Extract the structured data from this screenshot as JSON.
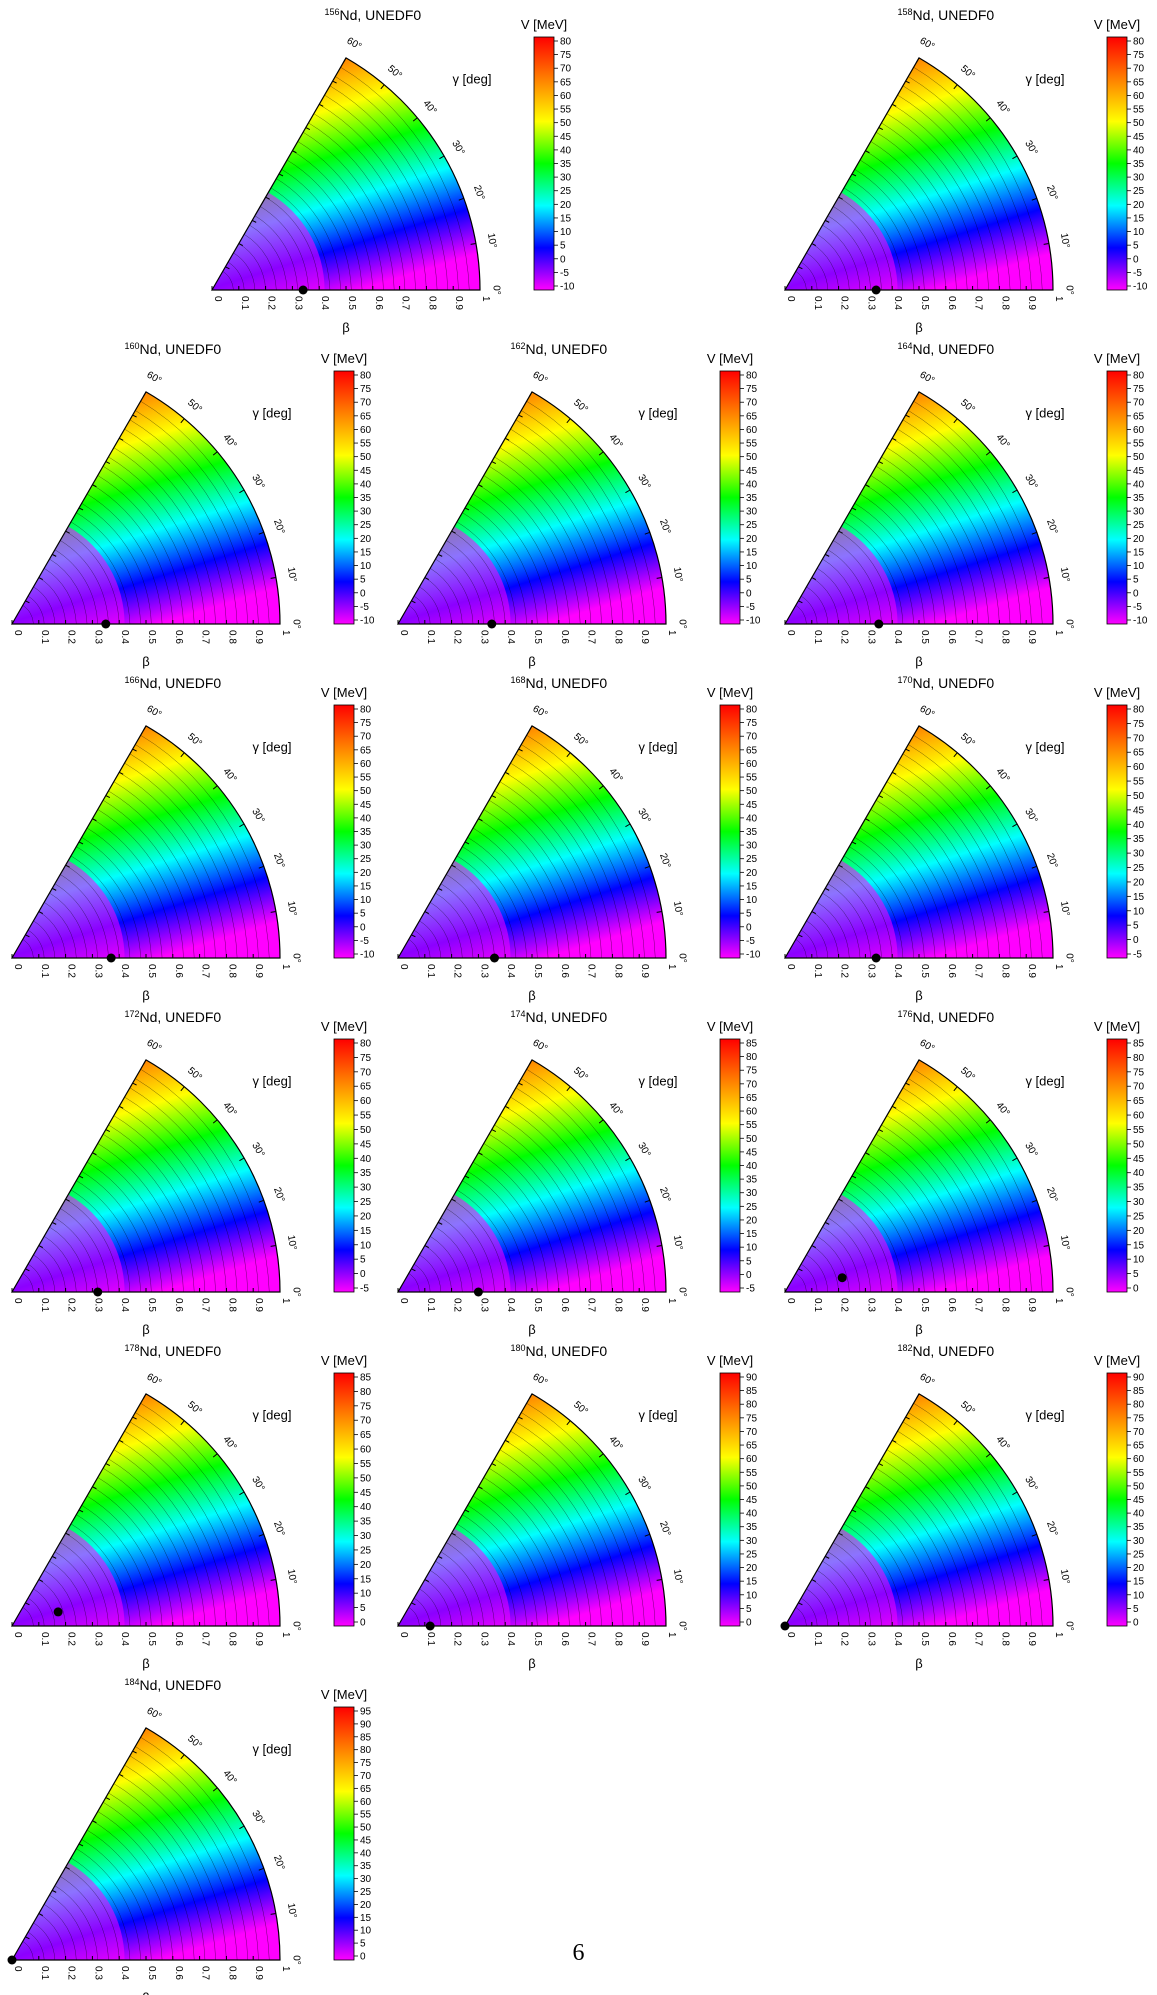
{
  "page_number": "6",
  "gamma_ticks": [
    "0°",
    "10°",
    "20°",
    "30°",
    "40°",
    "50°",
    "60°"
  ],
  "beta_ticks": [
    "0",
    "0.1",
    "0.2",
    "0.3",
    "0.4",
    "0.5",
    "0.6",
    "0.7",
    "0.8",
    "0.9",
    "1"
  ],
  "colors": {
    "min": "#ff00ff",
    "c1": "#0000ff",
    "c2": "#00ffff",
    "c3": "#00ff00",
    "c4": "#ffff00",
    "c5": "#ff8000",
    "max": "#ff0000"
  },
  "chart_data": [
    {
      "type": "heatmap",
      "nucleus": "156",
      "title": "Nd, UNEDF0",
      "xlabel": "β",
      "ylabel": "γ [deg]",
      "colorbar_label": "V [MeV]",
      "x_axis": "beta",
      "xlim": [
        0,
        1
      ],
      "ylim": [
        0,
        60
      ],
      "vmin": -10,
      "vmax": 80,
      "colorbar_ticks": [
        -10,
        -5,
        0,
        5,
        10,
        15,
        20,
        25,
        30,
        35,
        40,
        45,
        50,
        55,
        60,
        65,
        70,
        75,
        80
      ],
      "minimum": {
        "beta": 0.34,
        "gamma": 0
      }
    },
    {
      "type": "heatmap",
      "nucleus": "158",
      "title": "Nd, UNEDF0",
      "xlabel": "β",
      "ylabel": "γ [deg]",
      "colorbar_label": "V [MeV]",
      "x_axis": "beta",
      "xlim": [
        0,
        1
      ],
      "ylim": [
        0,
        60
      ],
      "vmin": -10,
      "vmax": 80,
      "colorbar_ticks": [
        -10,
        -5,
        0,
        5,
        10,
        15,
        20,
        25,
        30,
        35,
        40,
        45,
        50,
        55,
        60,
        65,
        70,
        75,
        80
      ],
      "minimum": {
        "beta": 0.34,
        "gamma": 0
      }
    },
    {
      "type": "heatmap",
      "nucleus": "160",
      "title": "Nd, UNEDF0",
      "xlabel": "β",
      "ylabel": "γ [deg]",
      "colorbar_label": "V [MeV]",
      "x_axis": "beta",
      "xlim": [
        0,
        1
      ],
      "ylim": [
        0,
        60
      ],
      "vmin": -10,
      "vmax": 80,
      "colorbar_ticks": [
        -10,
        -5,
        0,
        5,
        10,
        15,
        20,
        25,
        30,
        35,
        40,
        45,
        50,
        55,
        60,
        65,
        70,
        75,
        80
      ],
      "minimum": {
        "beta": 0.35,
        "gamma": 0
      }
    },
    {
      "type": "heatmap",
      "nucleus": "162",
      "title": "Nd, UNEDF0",
      "xlabel": "β",
      "ylabel": "γ [deg]",
      "colorbar_label": "V [MeV]",
      "x_axis": "beta",
      "xlim": [
        0,
        1
      ],
      "ylim": [
        0,
        60
      ],
      "vmin": -10,
      "vmax": 80,
      "colorbar_ticks": [
        -10,
        -5,
        0,
        5,
        10,
        15,
        20,
        25,
        30,
        35,
        40,
        45,
        50,
        55,
        60,
        65,
        70,
        75,
        80
      ],
      "minimum": {
        "beta": 0.35,
        "gamma": 0
      }
    },
    {
      "type": "heatmap",
      "nucleus": "164",
      "title": "Nd, UNEDF0",
      "xlabel": "β",
      "ylabel": "γ [deg]",
      "colorbar_label": "V [MeV]",
      "x_axis": "beta",
      "xlim": [
        0,
        1
      ],
      "ylim": [
        0,
        60
      ],
      "vmin": -10,
      "vmax": 80,
      "colorbar_ticks": [
        -10,
        -5,
        0,
        5,
        10,
        15,
        20,
        25,
        30,
        35,
        40,
        45,
        50,
        55,
        60,
        65,
        70,
        75,
        80
      ],
      "minimum": {
        "beta": 0.35,
        "gamma": 0
      }
    },
    {
      "type": "heatmap",
      "nucleus": "166",
      "title": "Nd, UNEDF0",
      "xlabel": "β",
      "ylabel": "γ [deg]",
      "colorbar_label": "V [MeV]",
      "x_axis": "beta",
      "xlim": [
        0,
        1
      ],
      "ylim": [
        0,
        60
      ],
      "vmin": -10,
      "vmax": 80,
      "colorbar_ticks": [
        -10,
        -5,
        0,
        5,
        10,
        15,
        20,
        25,
        30,
        35,
        40,
        45,
        50,
        55,
        60,
        65,
        70,
        75,
        80
      ],
      "minimum": {
        "beta": 0.37,
        "gamma": 0
      }
    },
    {
      "type": "heatmap",
      "nucleus": "168",
      "title": "Nd, UNEDF0",
      "xlabel": "β",
      "ylabel": "γ [deg]",
      "colorbar_label": "V [MeV]",
      "x_axis": "beta",
      "xlim": [
        0,
        1
      ],
      "ylim": [
        0,
        60
      ],
      "vmin": -10,
      "vmax": 80,
      "colorbar_ticks": [
        -10,
        -5,
        0,
        5,
        10,
        15,
        20,
        25,
        30,
        35,
        40,
        45,
        50,
        55,
        60,
        65,
        70,
        75,
        80
      ],
      "minimum": {
        "beta": 0.36,
        "gamma": 0
      }
    },
    {
      "type": "heatmap",
      "nucleus": "170",
      "title": "Nd, UNEDF0",
      "xlabel": "β",
      "ylabel": "γ [deg]",
      "colorbar_label": "V [MeV]",
      "x_axis": "beta",
      "xlim": [
        0,
        1
      ],
      "ylim": [
        0,
        60
      ],
      "vmin": -5,
      "vmax": 80,
      "colorbar_ticks": [
        -5,
        0,
        5,
        10,
        15,
        20,
        25,
        30,
        35,
        40,
        45,
        50,
        55,
        60,
        65,
        70,
        75,
        80
      ],
      "minimum": {
        "beta": 0.34,
        "gamma": 0
      }
    },
    {
      "type": "heatmap",
      "nucleus": "172",
      "title": "Nd, UNEDF0",
      "xlabel": "β",
      "ylabel": "γ [deg]",
      "colorbar_label": "V [MeV]",
      "x_axis": "beta",
      "xlim": [
        0,
        1
      ],
      "ylim": [
        0,
        60
      ],
      "vmin": -5,
      "vmax": 80,
      "colorbar_ticks": [
        -5,
        0,
        5,
        10,
        15,
        20,
        25,
        30,
        35,
        40,
        45,
        50,
        55,
        60,
        65,
        70,
        75,
        80
      ],
      "minimum": {
        "beta": 0.32,
        "gamma": 0
      }
    },
    {
      "type": "heatmap",
      "nucleus": "174",
      "title": "Nd, UNEDF0",
      "xlabel": "β",
      "ylabel": "γ [deg]",
      "colorbar_label": "V [MeV]",
      "x_axis": "beta",
      "xlim": [
        0,
        1
      ],
      "ylim": [
        0,
        60
      ],
      "vmin": -5,
      "vmax": 85,
      "colorbar_ticks": [
        -5,
        0,
        5,
        10,
        15,
        20,
        25,
        30,
        35,
        40,
        45,
        50,
        55,
        60,
        65,
        70,
        75,
        80,
        85
      ],
      "minimum": {
        "beta": 0.3,
        "gamma": 0
      }
    },
    {
      "type": "heatmap",
      "nucleus": "176",
      "title": "Nd, UNEDF0",
      "xlabel": "β",
      "ylabel": "γ [deg]",
      "colorbar_label": "V [MeV]",
      "x_axis": "beta",
      "xlim": [
        0,
        1
      ],
      "ylim": [
        0,
        60
      ],
      "vmin": 0,
      "vmax": 85,
      "colorbar_ticks": [
        0,
        5,
        10,
        15,
        20,
        25,
        30,
        35,
        40,
        45,
        50,
        55,
        60,
        65,
        70,
        75,
        80,
        85
      ],
      "minimum": {
        "beta": 0.22,
        "gamma": 14
      }
    },
    {
      "type": "heatmap",
      "nucleus": "178",
      "title": "Nd, UNEDF0",
      "xlabel": "β",
      "ylabel": "γ [deg]",
      "colorbar_label": "V [MeV]",
      "x_axis": "beta",
      "xlim": [
        0,
        1
      ],
      "ylim": [
        0,
        60
      ],
      "vmin": 0,
      "vmax": 85,
      "colorbar_ticks": [
        0,
        5,
        10,
        15,
        20,
        25,
        30,
        35,
        40,
        45,
        50,
        55,
        60,
        65,
        70,
        75,
        80,
        85
      ],
      "minimum": {
        "beta": 0.18,
        "gamma": 17
      }
    },
    {
      "type": "heatmap",
      "nucleus": "180",
      "title": "Nd, UNEDF0",
      "xlabel": "β",
      "ylabel": "γ [deg]",
      "colorbar_label": "V [MeV]",
      "x_axis": "beta",
      "xlim": [
        0,
        1
      ],
      "ylim": [
        0,
        60
      ],
      "vmin": 0,
      "vmax": 90,
      "colorbar_ticks": [
        0,
        5,
        10,
        15,
        20,
        25,
        30,
        35,
        40,
        45,
        50,
        55,
        60,
        65,
        70,
        75,
        80,
        85,
        90
      ],
      "minimum": {
        "beta": 0.12,
        "gamma": 0
      }
    },
    {
      "type": "heatmap",
      "nucleus": "182",
      "title": "Nd, UNEDF0",
      "xlabel": "β",
      "ylabel": "γ [deg]",
      "colorbar_label": "V [MeV]",
      "x_axis": "beta",
      "xlim": [
        0,
        1
      ],
      "ylim": [
        0,
        60
      ],
      "vmin": 0,
      "vmax": 90,
      "colorbar_ticks": [
        0,
        5,
        10,
        15,
        20,
        25,
        30,
        35,
        40,
        45,
        50,
        55,
        60,
        65,
        70,
        75,
        80,
        85,
        90
      ],
      "minimum": {
        "beta": 0.0,
        "gamma": 0
      }
    },
    {
      "type": "heatmap",
      "nucleus": "184",
      "title": "Nd, UNEDF0",
      "xlabel": "β",
      "ylabel": "γ [deg]",
      "colorbar_label": "V [MeV]",
      "x_axis": "beta",
      "xlim": [
        0,
        1
      ],
      "ylim": [
        0,
        60
      ],
      "vmin": 0,
      "vmax": 95,
      "colorbar_ticks": [
        0,
        5,
        10,
        15,
        20,
        25,
        30,
        35,
        40,
        45,
        50,
        55,
        60,
        65,
        70,
        75,
        80,
        85,
        90,
        95
      ],
      "minimum": {
        "beta": 0.0,
        "gamma": 0
      }
    }
  ]
}
